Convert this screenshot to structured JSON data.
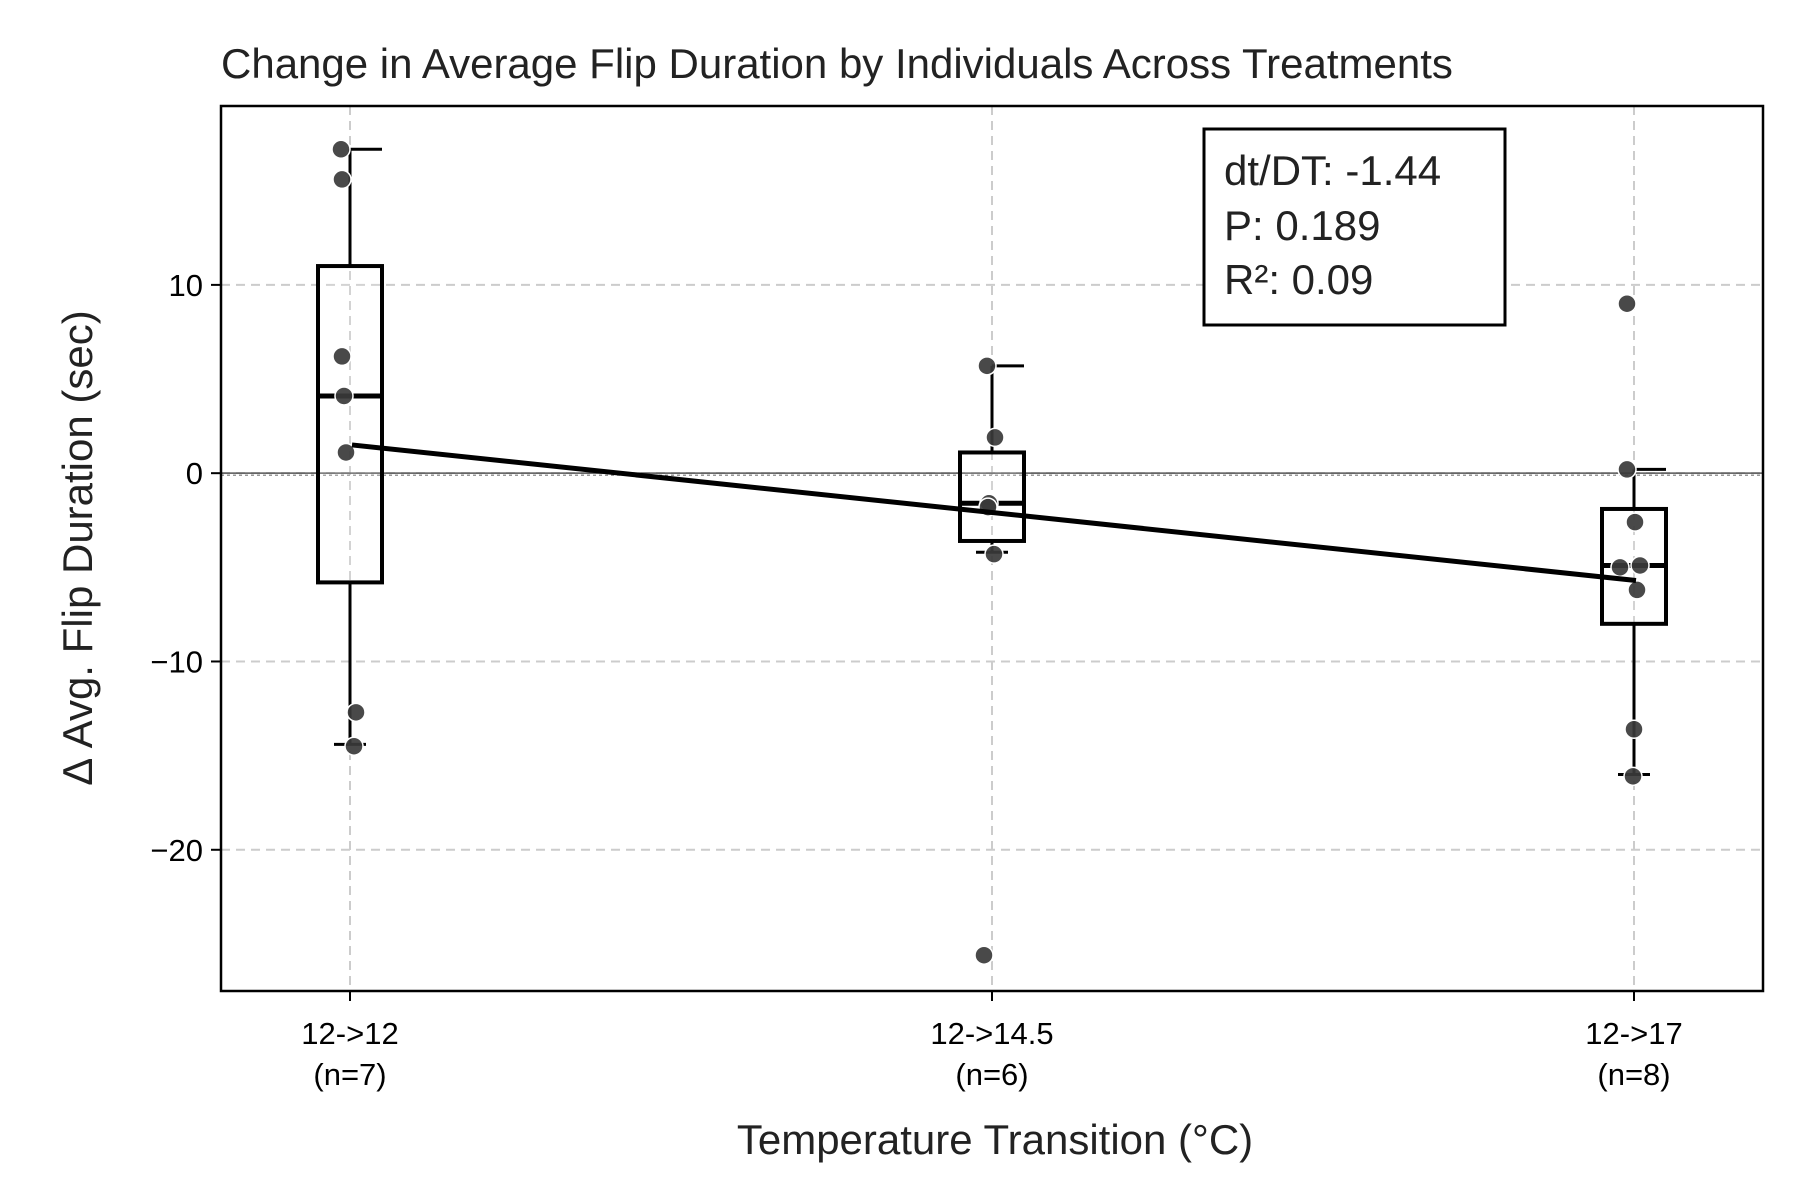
{
  "chart_data": {
    "type": "box",
    "title": "Change in Average Flip Duration by Individuals Across Treatments",
    "xlabel": "Temperature Transition (°C)",
    "ylabel": "Δ Avg. Flip Duration (sec)",
    "ylim": [
      -27.5,
      19.5
    ],
    "yticks": [
      10,
      0,
      -10,
      -20
    ],
    "ytick_labels": [
      "10",
      "0",
      "−10",
      "−20"
    ],
    "grid": true,
    "categories": [
      {
        "label": "12->12",
        "n_label": "(n=7)"
      },
      {
        "label": "12->14.5",
        "n_label": "(n=6)"
      },
      {
        "label": "12->17",
        "n_label": "(n=8)"
      }
    ],
    "boxes": [
      {
        "q1": -5.8,
        "median": 4.1,
        "q3": 11.0,
        "whisker_low": -14.4,
        "whisker_high": 17.2
      },
      {
        "q1": -3.6,
        "median": -1.6,
        "q3": 1.1,
        "whisker_low": -4.2,
        "whisker_high": 5.7
      },
      {
        "q1": -8.0,
        "median": -4.9,
        "q3": -1.9,
        "whisker_low": -16.0,
        "whisker_high": 0.2
      }
    ],
    "points": [
      [
        17.2,
        15.6,
        6.2,
        4.1,
        1.1,
        -12.7,
        -14.5
      ],
      [
        5.7,
        1.9,
        -1.6,
        -1.8,
        -4.3,
        -25.6
      ],
      [
        9.0,
        0.2,
        -2.6,
        -5.0,
        -4.9,
        -6.2,
        -13.6,
        -16.1
      ]
    ],
    "regression": {
      "y_start": 1.5,
      "y_end": -5.7
    },
    "zero_line": 0,
    "annotation": {
      "lines": [
        "dt/DT: -1.44",
        "P: 0.189",
        "R²: 0.09"
      ],
      "position": "top-right"
    },
    "colors": {
      "points": "#3a3a3a",
      "box": "#000000",
      "grid": "#cccccc",
      "line": "#000000"
    }
  }
}
